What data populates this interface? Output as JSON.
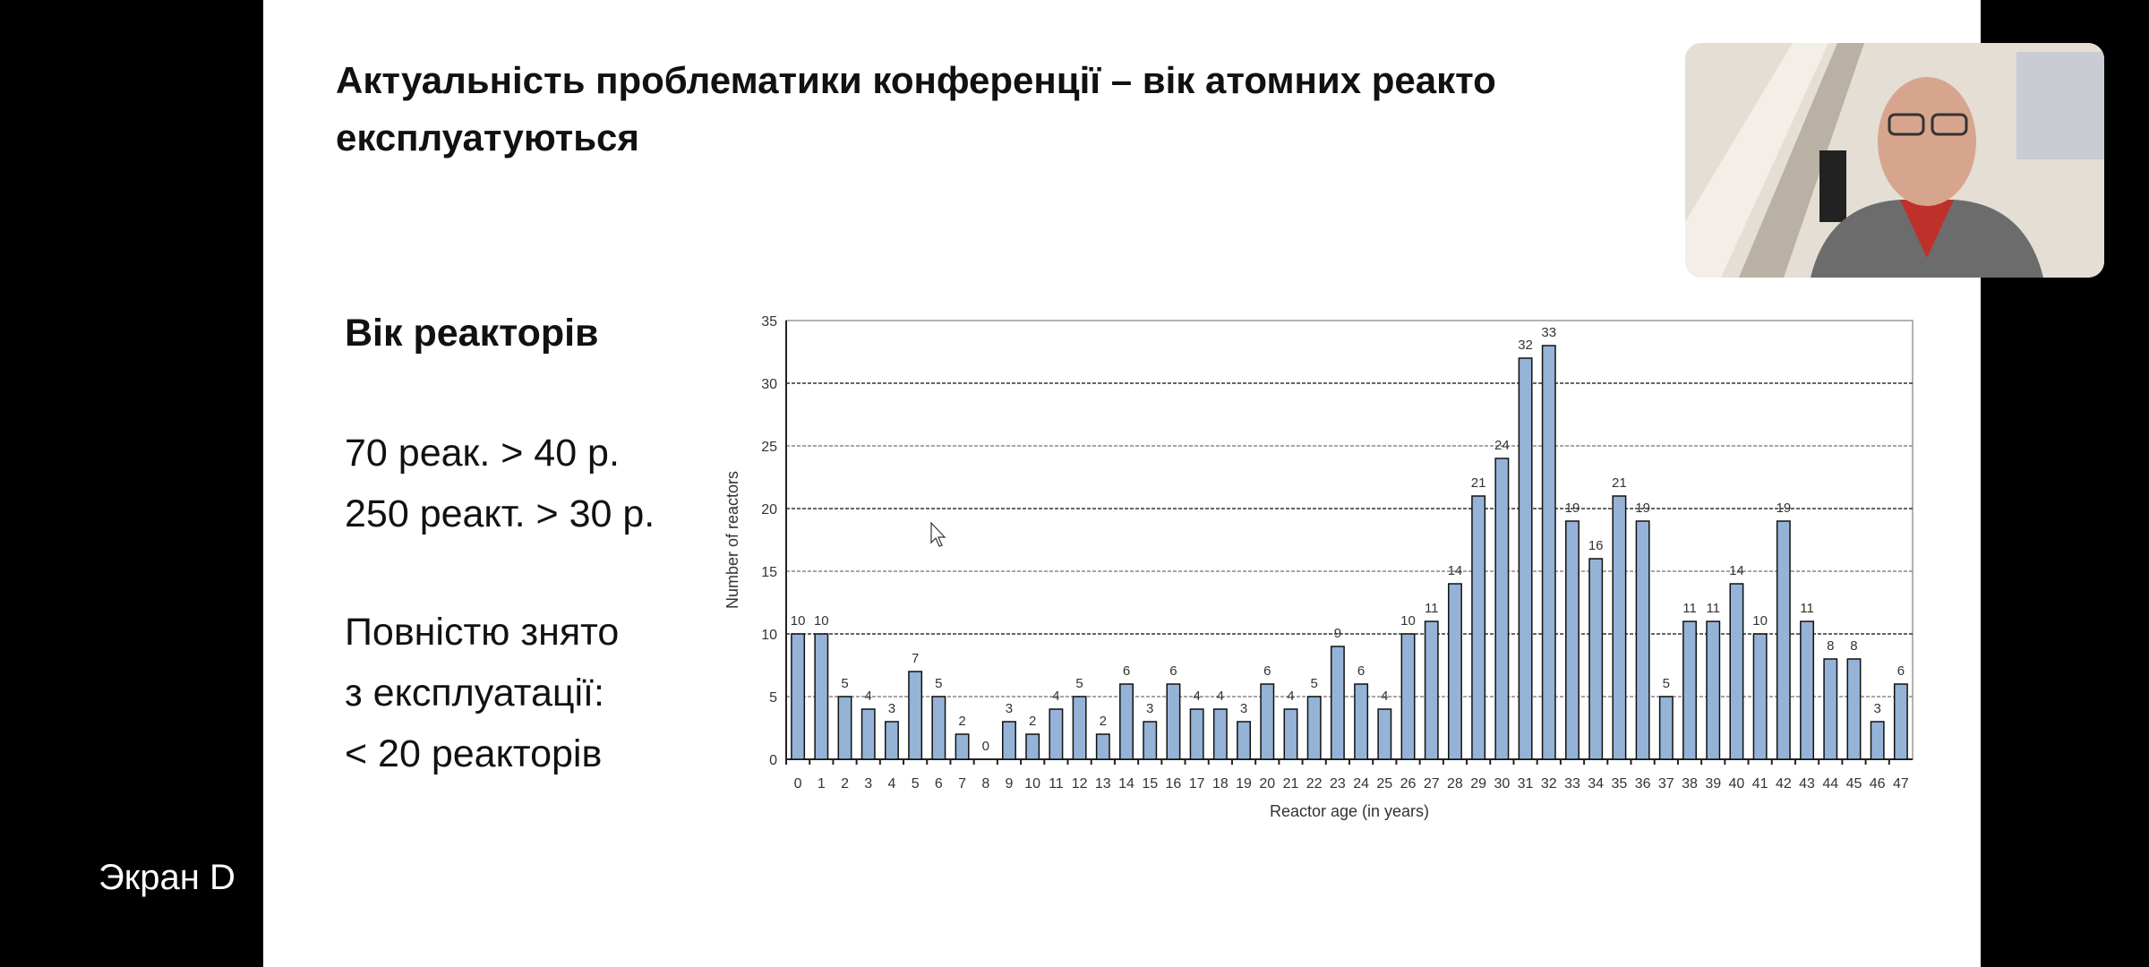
{
  "slide": {
    "title_line1": "Актуальність проблематики конференції – вік атомних реакто",
    "title_line2": "експлуатуються",
    "side_heading": "Вік реакторів",
    "side_lines": [
      "70 реак. > 40 р.",
      "250 реакт. > 30 р.",
      "",
      "Повністю знято",
      "з експлуатації:",
      "< 20 реакторів"
    ]
  },
  "screen_share_caption": "Экран D",
  "webcam": {
    "icon": "presenter-video-feed"
  },
  "colors": {
    "bar_fill": "#95b3d7",
    "bar_stroke": "#111111",
    "background_side": "#000000"
  },
  "chart_data": {
    "type": "bar",
    "title": "",
    "xlabel": "Reactor age (in years)",
    "ylabel": "Number of reactors",
    "ylim": [
      0,
      35
    ],
    "yticks": [
      0,
      5,
      10,
      15,
      20,
      25,
      30,
      35
    ],
    "grid": true,
    "data_labels": true,
    "categories": [
      "0",
      "1",
      "2",
      "3",
      "4",
      "5",
      "6",
      "7",
      "8",
      "9",
      "10",
      "11",
      "12",
      "13",
      "14",
      "15",
      "16",
      "17",
      "18",
      "19",
      "20",
      "21",
      "22",
      "23",
      "24",
      "25",
      "26",
      "27",
      "28",
      "29",
      "30",
      "31",
      "32",
      "33",
      "34",
      "35",
      "36",
      "37",
      "38",
      "39",
      "40",
      "41",
      "42",
      "43",
      "44",
      "45",
      "46",
      "47"
    ],
    "values": [
      10,
      10,
      5,
      4,
      3,
      7,
      5,
      2,
      0,
      3,
      2,
      4,
      5,
      2,
      6,
      3,
      6,
      4,
      4,
      3,
      6,
      4,
      5,
      9,
      6,
      4,
      10,
      11,
      14,
      21,
      24,
      32,
      33,
      19,
      16,
      21,
      19,
      5,
      11,
      11,
      14,
      10,
      19,
      11,
      8,
      8,
      3,
      6
    ]
  }
}
